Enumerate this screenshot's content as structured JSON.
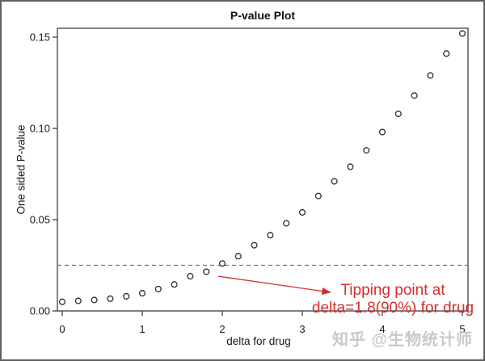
{
  "figure": {
    "watermark": "知乎 @生物统计师"
  },
  "chart_data": {
    "type": "scatter",
    "title": "P-value Plot",
    "xlabel": "delta for drug",
    "ylabel": "One sided P-value",
    "xlim": [
      0,
      5
    ],
    "ylim": [
      0,
      0.15
    ],
    "x_ticks": [
      0,
      1,
      2,
      3,
      4,
      5
    ],
    "x_tick_labels": [
      "0",
      "1",
      "2",
      "3",
      "4",
      "5"
    ],
    "y_ticks": [
      0.0,
      0.05,
      0.1,
      0.15
    ],
    "y_tick_labels": [
      "0.00",
      "0.05",
      "0.10",
      "0.15"
    ],
    "grid": false,
    "marker": "open-circle",
    "points": [
      [
        0.0,
        0.005
      ],
      [
        0.2,
        0.0055
      ],
      [
        0.4,
        0.006
      ],
      [
        0.6,
        0.0067
      ],
      [
        0.8,
        0.008
      ],
      [
        1.0,
        0.0097
      ],
      [
        1.2,
        0.012
      ],
      [
        1.4,
        0.0145
      ],
      [
        1.6,
        0.019
      ],
      [
        1.8,
        0.0215
      ],
      [
        2.0,
        0.026
      ],
      [
        2.2,
        0.03
      ],
      [
        2.4,
        0.036
      ],
      [
        2.6,
        0.0415
      ],
      [
        2.8,
        0.048
      ],
      [
        3.0,
        0.054
      ],
      [
        3.2,
        0.063
      ],
      [
        3.4,
        0.071
      ],
      [
        3.6,
        0.079
      ],
      [
        3.8,
        0.088
      ],
      [
        4.0,
        0.098
      ],
      [
        4.2,
        0.108
      ],
      [
        4.4,
        0.118
      ],
      [
        4.6,
        0.129
      ],
      [
        4.8,
        0.141
      ],
      [
        5.0,
        0.152
      ]
    ],
    "reference_line": {
      "y": 0.025,
      "style": "dashed",
      "color": "#5b7b9d"
    },
    "annotation": {
      "line1": "Tipping point at",
      "line2": "delta=1.8(90%) for drug",
      "color": "#d32f2f",
      "arrow": {
        "from_x": 1.95,
        "from_y": 0.019,
        "to_x": 3.35,
        "to_y": 0.0102
      }
    },
    "colors": {
      "axis": "#3f3f3f",
      "tick_text": "#1a1a1a",
      "marker_stroke": "#2d2d2d"
    }
  }
}
